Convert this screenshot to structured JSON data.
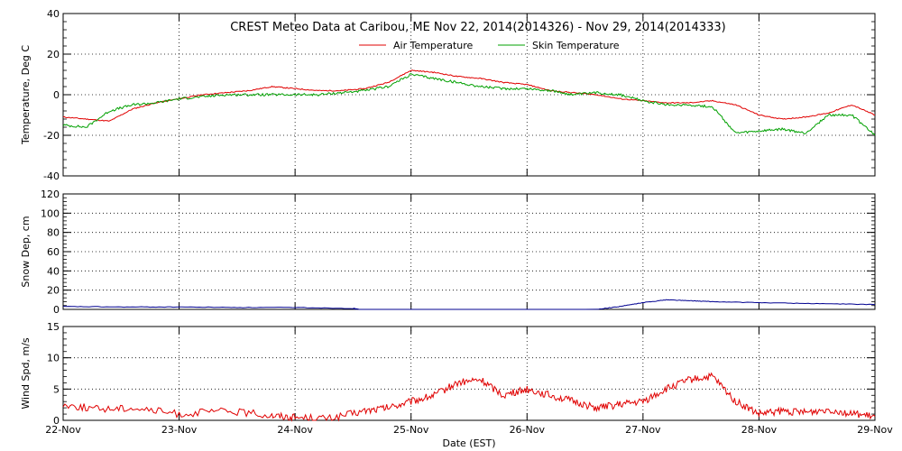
{
  "figure": {
    "title": "CREST Meteo Data at Caribou, ME   Nov 22, 2014(2014326) - Nov 29, 2014(2014333)",
    "xlabel": "Date (EST)",
    "x_ticks": [
      "22-Nov",
      "23-Nov",
      "24-Nov",
      "25-Nov",
      "26-Nov",
      "27-Nov",
      "28-Nov",
      "29-Nov"
    ]
  },
  "chart_data": [
    {
      "type": "line",
      "ylabel": "Temperature, Deg C",
      "ylim": [
        -40,
        40
      ],
      "y_ticks": [
        -40,
        -20,
        0,
        20,
        40
      ],
      "grid": true,
      "legend": "top-center",
      "x_unit": "days since 22-Nov",
      "series": [
        {
          "name": "Air Temperature",
          "color": "#e00000",
          "points": [
            [
              0,
              -11
            ],
            [
              0.2,
              -12
            ],
            [
              0.4,
              -13
            ],
            [
              0.6,
              -7
            ],
            [
              0.8,
              -4
            ],
            [
              1,
              -2
            ],
            [
              1.2,
              0
            ],
            [
              1.4,
              1
            ],
            [
              1.6,
              2
            ],
            [
              1.8,
              4
            ],
            [
              2,
              3
            ],
            [
              2.2,
              2
            ],
            [
              2.4,
              2
            ],
            [
              2.6,
              3
            ],
            [
              2.8,
              6
            ],
            [
              3,
              12
            ],
            [
              3.2,
              11
            ],
            [
              3.4,
              9
            ],
            [
              3.6,
              8
            ],
            [
              3.8,
              6
            ],
            [
              4,
              5
            ],
            [
              4.2,
              2
            ],
            [
              4.4,
              1
            ],
            [
              4.6,
              0
            ],
            [
              4.8,
              -2
            ],
            [
              5,
              -3
            ],
            [
              5.2,
              -4
            ],
            [
              5.4,
              -4
            ],
            [
              5.6,
              -3
            ],
            [
              5.8,
              -5
            ],
            [
              6,
              -10
            ],
            [
              6.2,
              -12
            ],
            [
              6.4,
              -11
            ],
            [
              6.6,
              -9
            ],
            [
              6.8,
              -5
            ],
            [
              7,
              -10
            ]
          ]
        },
        {
          "name": "Skin Temperature",
          "color": "#00a000",
          "points": [
            [
              0,
              -15
            ],
            [
              0.2,
              -16
            ],
            [
              0.4,
              -8
            ],
            [
              0.6,
              -5
            ],
            [
              0.8,
              -4
            ],
            [
              1,
              -2
            ],
            [
              1.2,
              -1
            ],
            [
              1.4,
              0
            ],
            [
              1.6,
              0
            ],
            [
              1.8,
              0
            ],
            [
              2,
              0
            ],
            [
              2.2,
              0
            ],
            [
              2.4,
              1
            ],
            [
              2.6,
              2
            ],
            [
              2.8,
              4
            ],
            [
              3,
              10
            ],
            [
              3.2,
              8
            ],
            [
              3.4,
              6
            ],
            [
              3.6,
              4
            ],
            [
              3.8,
              3
            ],
            [
              4,
              3
            ],
            [
              4.2,
              2
            ],
            [
              4.4,
              0
            ],
            [
              4.6,
              1
            ],
            [
              4.8,
              0
            ],
            [
              5,
              -3
            ],
            [
              5.2,
              -5
            ],
            [
              5.4,
              -5
            ],
            [
              5.6,
              -6
            ],
            [
              5.8,
              -19
            ],
            [
              6,
              -18
            ],
            [
              6.2,
              -17
            ],
            [
              6.4,
              -19
            ],
            [
              6.6,
              -10
            ],
            [
              6.8,
              -10
            ],
            [
              7,
              -20
            ]
          ]
        }
      ]
    },
    {
      "type": "line",
      "ylabel": "Snow Dep, cm",
      "ylim": [
        0,
        120
      ],
      "y_ticks": [
        0,
        20,
        40,
        60,
        80,
        100,
        120
      ],
      "grid": true,
      "series": [
        {
          "color": "#000090",
          "points": [
            [
              0,
              3
            ],
            [
              0.5,
              2.5
            ],
            [
              1,
              2.5
            ],
            [
              1.5,
              2
            ],
            [
              2,
              2
            ],
            [
              2.5,
              1
            ],
            [
              2.55,
              0
            ],
            [
              4.6,
              0
            ],
            [
              4.8,
              3
            ],
            [
              5,
              7
            ],
            [
              5.2,
              10
            ],
            [
              5.4,
              9
            ],
            [
              5.6,
              8
            ],
            [
              6,
              7
            ],
            [
              6.5,
              6
            ],
            [
              7,
              5
            ]
          ]
        }
      ]
    },
    {
      "type": "line",
      "ylabel": "Wind Spd, m/s",
      "ylim": [
        0,
        15
      ],
      "y_ticks": [
        0,
        5,
        10,
        15
      ],
      "grid": true,
      "series": [
        {
          "color": "#e00000",
          "points": [
            [
              0,
              2.5
            ],
            [
              0.3,
              1.8
            ],
            [
              0.6,
              2
            ],
            [
              1,
              1
            ],
            [
              1.4,
              1.5
            ],
            [
              1.8,
              0.8
            ],
            [
              2,
              0.5
            ],
            [
              2.3,
              0.3
            ],
            [
              2.6,
              1.5
            ],
            [
              2.8,
              2
            ],
            [
              3,
              3
            ],
            [
              3.2,
              4
            ],
            [
              3.4,
              6
            ],
            [
              3.6,
              6.5
            ],
            [
              3.8,
              4
            ],
            [
              4,
              5
            ],
            [
              4.2,
              4
            ],
            [
              4.4,
              3
            ],
            [
              4.6,
              2
            ],
            [
              4.8,
              2.5
            ],
            [
              5,
              3
            ],
            [
              5.2,
              5
            ],
            [
              5.4,
              6.5
            ],
            [
              5.6,
              7
            ],
            [
              5.8,
              3
            ],
            [
              6,
              1
            ],
            [
              6.2,
              1.5
            ],
            [
              6.4,
              1.2
            ],
            [
              6.6,
              1.8
            ],
            [
              6.8,
              1
            ],
            [
              7,
              0.6
            ]
          ]
        }
      ]
    }
  ]
}
